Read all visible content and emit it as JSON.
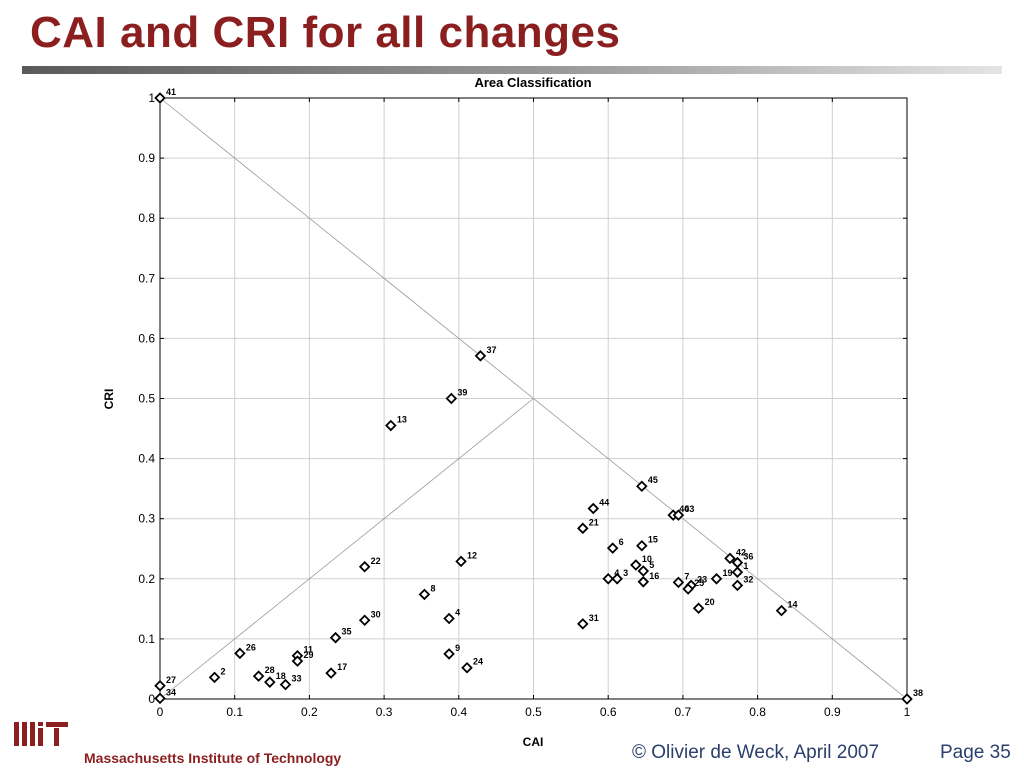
{
  "slide": {
    "title": "CAI and CRI for all changes",
    "institution": "Massachusetts Institute of Technology",
    "copyright": "© Olivier de Weck, April 2007",
    "page": "Page 35"
  },
  "chart_data": {
    "type": "scatter",
    "title": "Area Classification",
    "xlabel": "CAI",
    "ylabel": "CRI",
    "xlim": [
      0,
      1
    ],
    "ylim": [
      0,
      1
    ],
    "xticks": [
      "0",
      "0.1",
      "0.2",
      "0.3",
      "0.4",
      "0.5",
      "0.6",
      "0.7",
      "0.8",
      "0.9",
      "1"
    ],
    "yticks": [
      "0",
      "0.1",
      "0.2",
      "0.3",
      "0.4",
      "0.5",
      "0.6",
      "0.7",
      "0.8",
      "0.9",
      "1"
    ],
    "grid": true,
    "marker": "diamond",
    "reference_lines": [
      {
        "from": [
          0,
          1
        ],
        "to": [
          1,
          0
        ]
      },
      {
        "from": [
          0,
          0
        ],
        "to": [
          0.5,
          0.5
        ]
      }
    ],
    "points": [
      {
        "label": "41",
        "x": 0.0,
        "y": 1.0
      },
      {
        "label": "37",
        "x": 0.429,
        "y": 0.571
      },
      {
        "label": "39",
        "x": 0.39,
        "y": 0.5
      },
      {
        "label": "13",
        "x": 0.309,
        "y": 0.455
      },
      {
        "label": "45",
        "x": 0.645,
        "y": 0.354
      },
      {
        "label": "44",
        "x": 0.58,
        "y": 0.317
      },
      {
        "label": "40",
        "x": 0.687,
        "y": 0.306
      },
      {
        "label": "43",
        "x": 0.694,
        "y": 0.306
      },
      {
        "label": "21",
        "x": 0.566,
        "y": 0.284
      },
      {
        "label": "15",
        "x": 0.645,
        "y": 0.255
      },
      {
        "label": "6",
        "x": 0.606,
        "y": 0.251
      },
      {
        "label": "42",
        "x": 0.763,
        "y": 0.234
      },
      {
        "label": "36",
        "x": 0.773,
        "y": 0.227
      },
      {
        "label": "10",
        "x": 0.637,
        "y": 0.223
      },
      {
        "label": "1",
        "x": 0.773,
        "y": 0.211
      },
      {
        "label": "5",
        "x": 0.647,
        "y": 0.213
      },
      {
        "label": "4",
        "x": 0.6,
        "y": 0.2
      },
      {
        "label": "3",
        "x": 0.612,
        "y": 0.2
      },
      {
        "label": "16",
        "x": 0.647,
        "y": 0.195
      },
      {
        "label": "19",
        "x": 0.745,
        "y": 0.2
      },
      {
        "label": "7",
        "x": 0.694,
        "y": 0.194
      },
      {
        "label": "23",
        "x": 0.711,
        "y": 0.189
      },
      {
        "label": "25",
        "x": 0.707,
        "y": 0.183
      },
      {
        "label": "32",
        "x": 0.773,
        "y": 0.189
      },
      {
        "label": "20",
        "x": 0.721,
        "y": 0.151
      },
      {
        "label": "14",
        "x": 0.832,
        "y": 0.147
      },
      {
        "label": "31",
        "x": 0.566,
        "y": 0.125
      },
      {
        "label": "12",
        "x": 0.403,
        "y": 0.229
      },
      {
        "label": "22",
        "x": 0.274,
        "y": 0.22
      },
      {
        "label": "8",
        "x": 0.354,
        "y": 0.174
      },
      {
        "label": "4",
        "x": 0.387,
        "y": 0.134
      },
      {
        "label": "30",
        "x": 0.274,
        "y": 0.131
      },
      {
        "label": "35",
        "x": 0.235,
        "y": 0.102
      },
      {
        "label": "9",
        "x": 0.387,
        "y": 0.075
      },
      {
        "label": "24",
        "x": 0.411,
        "y": 0.052
      },
      {
        "label": "26",
        "x": 0.107,
        "y": 0.076
      },
      {
        "label": "11",
        "x": 0.184,
        "y": 0.072
      },
      {
        "label": "29",
        "x": 0.184,
        "y": 0.063
      },
      {
        "label": "17",
        "x": 0.229,
        "y": 0.043
      },
      {
        "label": "2",
        "x": 0.073,
        "y": 0.036
      },
      {
        "label": "28",
        "x": 0.132,
        "y": 0.038
      },
      {
        "label": "18",
        "x": 0.147,
        "y": 0.028
      },
      {
        "label": "33",
        "x": 0.168,
        "y": 0.024
      },
      {
        "label": "27",
        "x": 0.0,
        "y": 0.022
      },
      {
        "label": "34",
        "x": 0.0,
        "y": 0.001
      },
      {
        "label": "38",
        "x": 1.0,
        "y": 0.0
      }
    ]
  }
}
